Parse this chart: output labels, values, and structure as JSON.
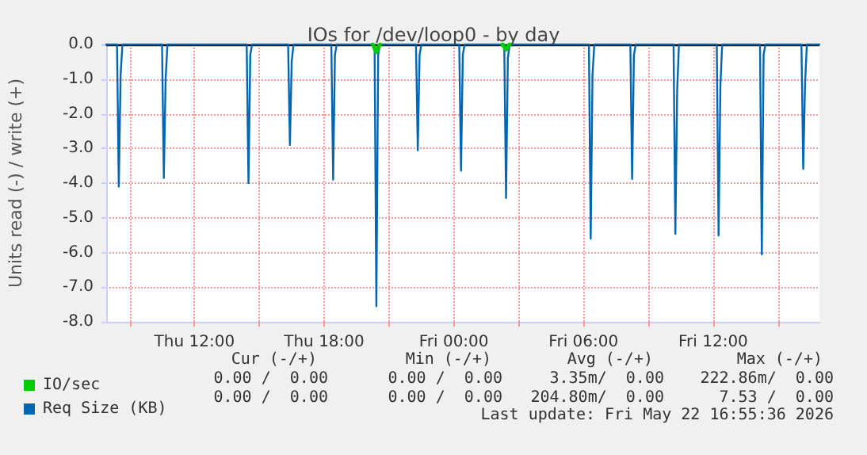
{
  "chart_data": {
    "type": "line",
    "title": "IOs for /dev/loop0 - by day",
    "ylabel": "Units read (-) / write (+)",
    "x": [
      "2026-05-21T07:55",
      "2026-05-21T08:25",
      "2026-05-21T08:30",
      "2026-05-21T08:35",
      "2026-05-21T08:40",
      "2026-05-21T10:30",
      "2026-05-21T10:35",
      "2026-05-21T10:40",
      "2026-05-21T10:45",
      "2026-05-21T14:25",
      "2026-05-21T14:30",
      "2026-05-21T14:35",
      "2026-05-21T14:40",
      "2026-05-21T16:20",
      "2026-05-21T16:25",
      "2026-05-21T16:30",
      "2026-05-21T16:35",
      "2026-05-21T18:20",
      "2026-05-21T18:25",
      "2026-05-21T18:30",
      "2026-05-21T18:35",
      "2026-05-21T20:20",
      "2026-05-21T20:25",
      "2026-05-21T20:30",
      "2026-05-21T20:35",
      "2026-05-21T22:15",
      "2026-05-21T22:20",
      "2026-05-21T22:25",
      "2026-05-21T22:30",
      "2026-05-22T00:15",
      "2026-05-22T00:20",
      "2026-05-22T00:25",
      "2026-05-22T00:30",
      "2026-05-22T02:20",
      "2026-05-22T02:25",
      "2026-05-22T02:30",
      "2026-05-22T02:35",
      "2026-05-22T06:15",
      "2026-05-22T06:20",
      "2026-05-22T06:25",
      "2026-05-22T06:30",
      "2026-05-22T08:10",
      "2026-05-22T08:15",
      "2026-05-22T08:20",
      "2026-05-22T08:25",
      "2026-05-22T10:10",
      "2026-05-22T10:15",
      "2026-05-22T10:20",
      "2026-05-22T10:25",
      "2026-05-22T12:10",
      "2026-05-22T12:15",
      "2026-05-22T12:20",
      "2026-05-22T12:25",
      "2026-05-22T14:10",
      "2026-05-22T14:15",
      "2026-05-22T14:20",
      "2026-05-22T14:25",
      "2026-05-22T16:05",
      "2026-05-22T16:10",
      "2026-05-22T16:15",
      "2026-05-22T16:20",
      "2026-05-22T16:55"
    ],
    "series": [
      {
        "name": "IO/sec",
        "color": "#00cc00",
        "x": [
          "2026-05-21T20:15",
          "2026-05-21T20:25",
          "2026-05-21T20:35",
          "2026-05-21T20:40",
          "2026-05-22T02:15",
          "2026-05-22T02:25",
          "2026-05-22T02:35"
        ],
        "values": [
          0,
          -0.22,
          0,
          null,
          0,
          -0.15,
          0
        ]
      },
      {
        "name": "Req Size (KB)",
        "color": "#0066b3",
        "values": [
          0,
          0,
          -4.1,
          -0.9,
          0,
          0,
          -3.85,
          -1.0,
          0,
          0,
          -4.0,
          -0.3,
          0,
          0,
          -2.9,
          -0.5,
          0,
          0,
          -3.9,
          -0.3,
          0,
          0,
          -7.55,
          -0.3,
          0,
          0,
          -3.05,
          -0.3,
          0,
          0,
          -3.64,
          -0.3,
          0,
          0,
          -4.43,
          -0.4,
          0,
          0,
          -5.6,
          -0.88,
          0,
          0,
          -3.88,
          -0.3,
          0,
          0,
          -5.46,
          -1.34,
          0,
          0,
          -5.51,
          -1.2,
          0,
          0,
          -6.05,
          -0.3,
          0,
          0,
          -3.59,
          -1.16,
          0,
          0
        ]
      }
    ],
    "xlim": [
      "2026-05-21T07:55",
      "2026-05-22T16:55"
    ],
    "xticks": [
      {
        "value": "2026-05-21T09:00",
        "label": null
      },
      {
        "value": "2026-05-21T12:00",
        "label": "Thu 12:00"
      },
      {
        "value": "2026-05-21T15:00",
        "label": null
      },
      {
        "value": "2026-05-21T18:00",
        "label": "Thu 18:00"
      },
      {
        "value": "2026-05-21T21:00",
        "label": null
      },
      {
        "value": "2026-05-22T00:00",
        "label": "Fri 00:00"
      },
      {
        "value": "2026-05-22T03:00",
        "label": null
      },
      {
        "value": "2026-05-22T06:00",
        "label": "Fri 06:00"
      },
      {
        "value": "2026-05-22T09:00",
        "label": null
      },
      {
        "value": "2026-05-22T12:00",
        "label": "Fri 12:00"
      },
      {
        "value": "2026-05-22T15:00",
        "label": null
      }
    ],
    "ylim": [
      -8,
      0
    ],
    "yticks": [
      {
        "value": -8,
        "label": "-8.0"
      },
      {
        "value": -7,
        "label": "-7.0"
      },
      {
        "value": -6,
        "label": "-6.0"
      },
      {
        "value": -5,
        "label": "-5.0"
      },
      {
        "value": -4,
        "label": "-4.0"
      },
      {
        "value": -3,
        "label": "-3.0"
      },
      {
        "value": -2,
        "label": "-2.0"
      },
      {
        "value": -1,
        "label": "-1.0"
      },
      {
        "value": 0,
        "label": "0.0"
      }
    ],
    "ref_lines": [
      {
        "axis": "y",
        "value": 0,
        "color": "#000000"
      }
    ],
    "grid": true,
    "legend": "bottom left",
    "marker": "none",
    "line_style": "solid",
    "annotations": [
      "Cur (-/+)",
      "Min (-/+)",
      "Avg (-/+)",
      "Max (-/+)",
      "0.00 /  0.00",
      "0.00 /  0.00",
      "3.35m/  0.00",
      "222.86m/  0.00",
      "0.00 /  0.00",
      "0.00 /  0.00",
      "204.80m/  0.00",
      "7.53 /  0.00",
      "Last update: Fri May 22 16:55:36 2026"
    ]
  }
}
